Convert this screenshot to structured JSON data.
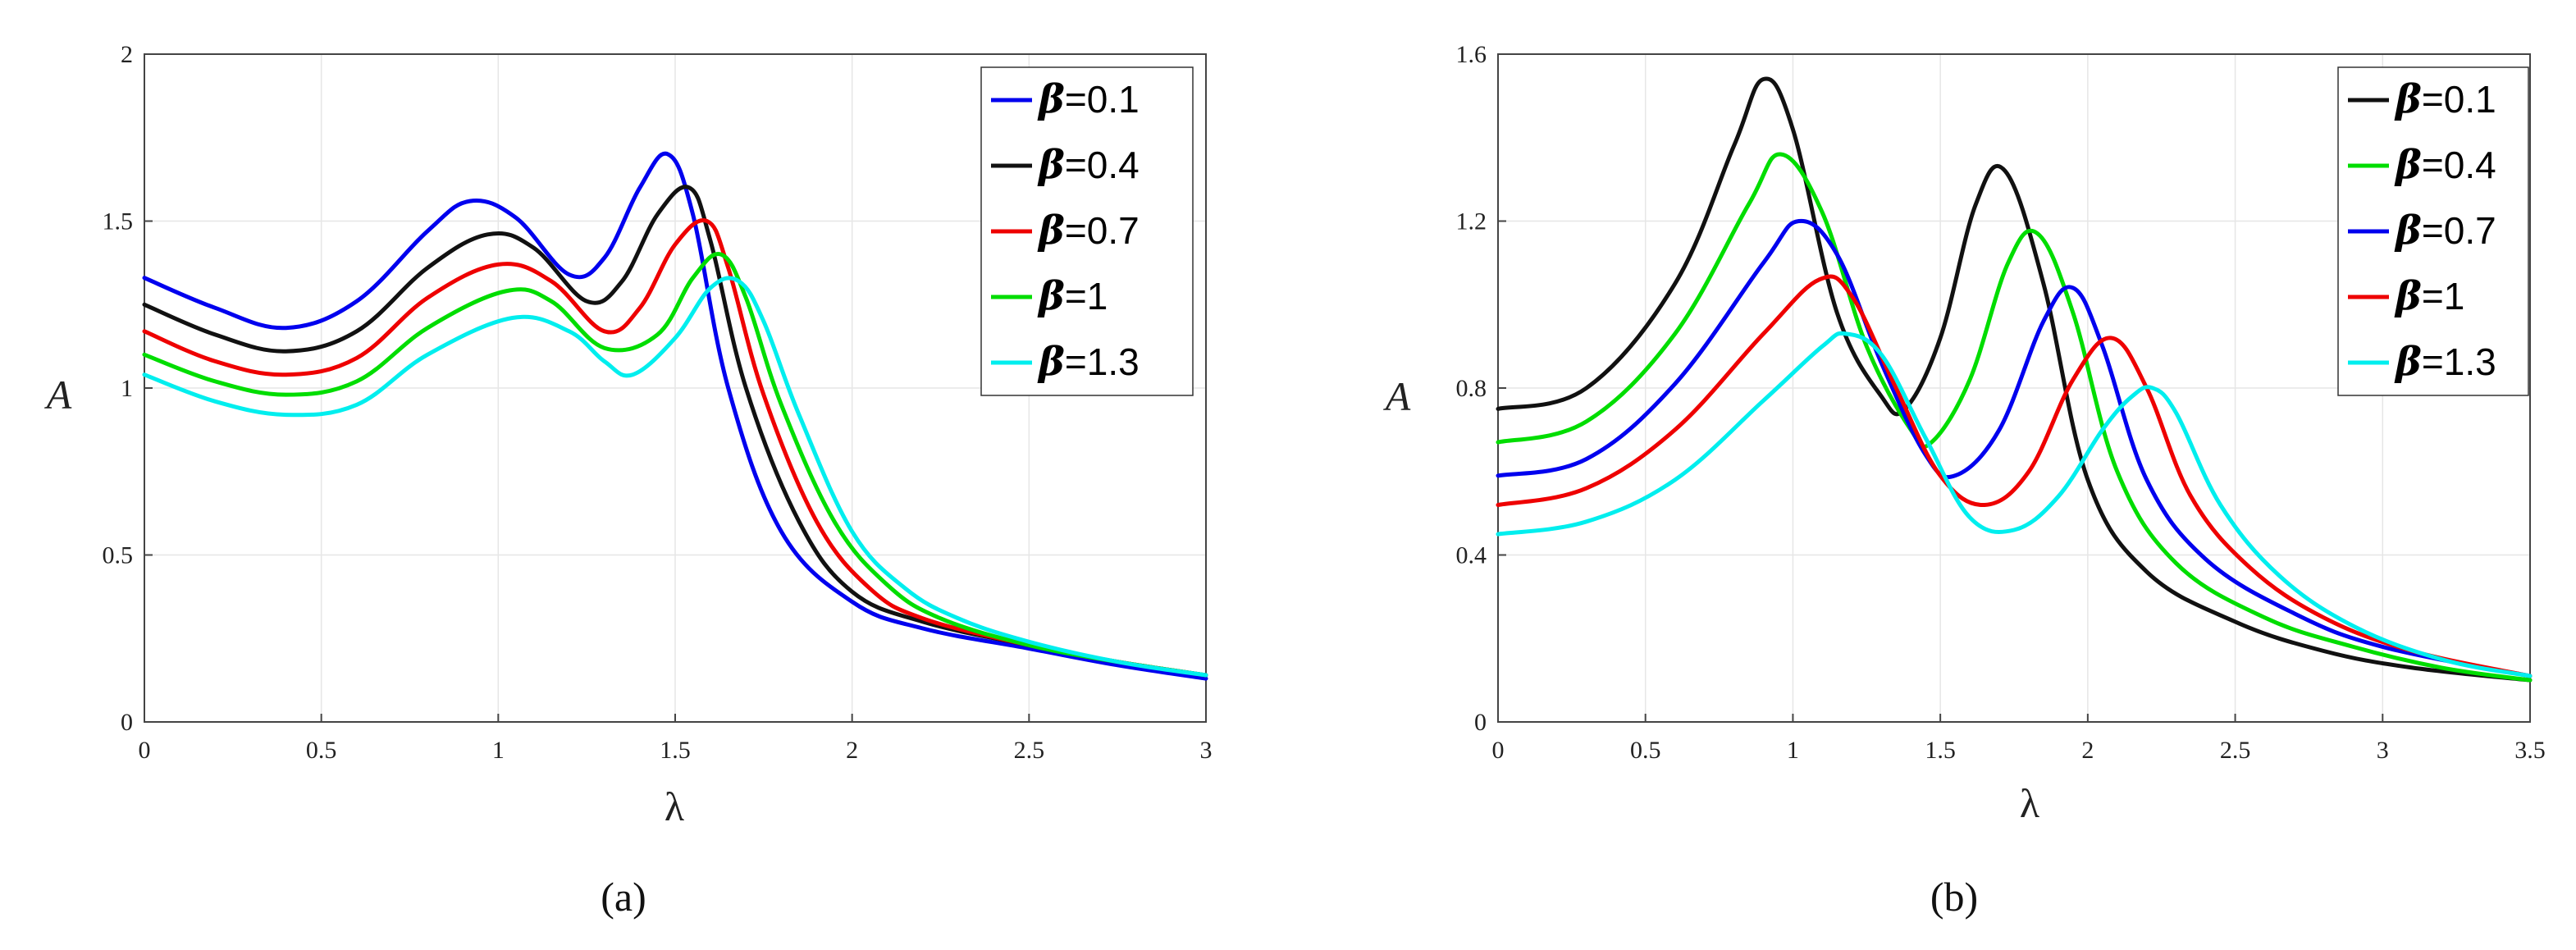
{
  "chart_data": [
    {
      "type": "line",
      "caption": "(a)",
      "xlabel": "λ",
      "ylabel": "A",
      "xlim": [
        0,
        3
      ],
      "ylim": [
        0,
        2
      ],
      "xticks": [
        "0",
        "0.5",
        "1",
        "1.5",
        "2",
        "2.5",
        "3"
      ],
      "yticks": [
        "0",
        "0.5",
        "1",
        "1.5",
        "2"
      ],
      "grid": true,
      "legend_position": "top-right",
      "series": [
        {
          "name": "β=0.1",
          "legend_symbol": "β",
          "legend_value": "=0.1",
          "color": "#0000ee",
          "x": [
            0,
            0.2,
            0.4,
            0.6,
            0.8,
            0.92,
            1.05,
            1.2,
            1.3,
            1.4,
            1.48,
            1.55,
            1.65,
            1.8,
            2.0,
            2.2,
            2.5,
            2.75,
            3.0
          ],
          "y": [
            1.33,
            1.24,
            1.18,
            1.26,
            1.47,
            1.56,
            1.51,
            1.34,
            1.39,
            1.6,
            1.7,
            1.52,
            1.0,
            0.57,
            0.36,
            0.28,
            0.22,
            0.17,
            0.13
          ]
        },
        {
          "name": "β=0.4",
          "legend_symbol": "β",
          "legend_value": "=0.4",
          "color": "#111111",
          "x": [
            0,
            0.2,
            0.4,
            0.6,
            0.8,
            0.97,
            1.1,
            1.25,
            1.35,
            1.45,
            1.54,
            1.6,
            1.7,
            1.85,
            2.0,
            2.2,
            2.5,
            2.75,
            3.0
          ],
          "y": [
            1.25,
            1.16,
            1.11,
            1.17,
            1.36,
            1.46,
            1.42,
            1.26,
            1.32,
            1.52,
            1.6,
            1.44,
            1.0,
            0.6,
            0.39,
            0.3,
            0.23,
            0.18,
            0.14
          ]
        },
        {
          "name": "β=0.7",
          "legend_symbol": "β",
          "legend_value": "=0.7",
          "color": "#ee0000",
          "x": [
            0,
            0.2,
            0.4,
            0.6,
            0.8,
            1.0,
            1.15,
            1.3,
            1.4,
            1.5,
            1.59,
            1.65,
            1.75,
            1.9,
            2.05,
            2.2,
            2.5,
            2.75,
            3.0
          ],
          "y": [
            1.17,
            1.08,
            1.04,
            1.09,
            1.27,
            1.37,
            1.32,
            1.17,
            1.24,
            1.43,
            1.5,
            1.36,
            0.98,
            0.6,
            0.4,
            0.31,
            0.23,
            0.18,
            0.14
          ]
        },
        {
          "name": "β=1",
          "legend_symbol": "β",
          "legend_value": "=1",
          "color": "#00dd00",
          "x": [
            0,
            0.2,
            0.4,
            0.6,
            0.8,
            1.02,
            1.15,
            1.3,
            1.45,
            1.55,
            1.63,
            1.7,
            1.8,
            1.95,
            2.1,
            2.25,
            2.5,
            2.75,
            3.0
          ],
          "y": [
            1.1,
            1.02,
            0.98,
            1.02,
            1.18,
            1.29,
            1.26,
            1.12,
            1.16,
            1.33,
            1.4,
            1.27,
            0.95,
            0.6,
            0.41,
            0.31,
            0.23,
            0.18,
            0.14
          ]
        },
        {
          "name": "β=1.3",
          "legend_symbol": "β",
          "legend_value": "=1.3",
          "color": "#00eeee",
          "x": [
            0,
            0.2,
            0.4,
            0.6,
            0.8,
            1.04,
            1.2,
            1.3,
            1.38,
            1.5,
            1.6,
            1.68,
            1.75,
            1.85,
            2.0,
            2.15,
            2.3,
            2.5,
            2.75,
            3.0
          ],
          "y": [
            1.04,
            0.96,
            0.92,
            0.95,
            1.1,
            1.21,
            1.17,
            1.08,
            1.04,
            1.15,
            1.3,
            1.32,
            1.2,
            0.92,
            0.57,
            0.4,
            0.31,
            0.24,
            0.18,
            0.14
          ]
        }
      ]
    },
    {
      "type": "line",
      "caption": "(b)",
      "xlabel": "λ",
      "ylabel": "A",
      "xlim": [
        0,
        3.5
      ],
      "ylim": [
        0,
        1.6
      ],
      "xticks": [
        "0",
        "0.5",
        "1",
        "1.5",
        "2",
        "2.5",
        "3",
        "3.5"
      ],
      "yticks": [
        "0",
        "0.4",
        "0.8",
        "1.2",
        "1.6"
      ],
      "grid": true,
      "legend_position": "top-right",
      "series": [
        {
          "name": "β=0.1",
          "legend_symbol": "β",
          "legend_value": "=0.1",
          "color": "#111111",
          "x": [
            0,
            0.3,
            0.6,
            0.8,
            0.9,
            1.0,
            1.15,
            1.3,
            1.38,
            1.5,
            1.62,
            1.72,
            1.85,
            2.0,
            2.2,
            2.5,
            2.8,
            3.1,
            3.5
          ],
          "y": [
            0.75,
            0.8,
            1.05,
            1.38,
            1.54,
            1.42,
            0.98,
            0.78,
            0.75,
            0.92,
            1.24,
            1.32,
            1.05,
            0.58,
            0.36,
            0.24,
            0.17,
            0.13,
            0.1
          ]
        },
        {
          "name": "β=0.4",
          "legend_symbol": "β",
          "legend_value": "=0.4",
          "color": "#00dd00",
          "x": [
            0,
            0.3,
            0.6,
            0.85,
            0.96,
            1.1,
            1.25,
            1.4,
            1.47,
            1.6,
            1.73,
            1.83,
            1.95,
            2.1,
            2.3,
            2.6,
            2.9,
            3.2,
            3.5
          ],
          "y": [
            0.67,
            0.72,
            0.93,
            1.24,
            1.36,
            1.22,
            0.9,
            0.7,
            0.67,
            0.82,
            1.1,
            1.17,
            0.98,
            0.6,
            0.38,
            0.25,
            0.18,
            0.13,
            0.1
          ]
        },
        {
          "name": "β=0.7",
          "legend_symbol": "β",
          "legend_value": "=0.7",
          "color": "#0000ee",
          "x": [
            0,
            0.3,
            0.6,
            0.9,
            1.02,
            1.15,
            1.3,
            1.45,
            1.55,
            1.7,
            1.85,
            1.95,
            2.05,
            2.2,
            2.4,
            2.7,
            3.0,
            3.5
          ],
          "y": [
            0.59,
            0.63,
            0.81,
            1.1,
            1.2,
            1.12,
            0.86,
            0.64,
            0.59,
            0.7,
            0.96,
            1.04,
            0.9,
            0.58,
            0.39,
            0.26,
            0.18,
            0.11
          ]
        },
        {
          "name": "β=1",
          "legend_symbol": "β",
          "legend_value": "=1",
          "color": "#ee0000",
          "x": [
            0,
            0.3,
            0.6,
            0.9,
            1.09,
            1.2,
            1.35,
            1.5,
            1.65,
            1.8,
            1.95,
            2.08,
            2.2,
            2.35,
            2.55,
            2.8,
            3.1,
            3.5
          ],
          "y": [
            0.52,
            0.56,
            0.7,
            0.93,
            1.06,
            1.02,
            0.8,
            0.59,
            0.52,
            0.6,
            0.82,
            0.92,
            0.8,
            0.54,
            0.37,
            0.25,
            0.17,
            0.11
          ]
        },
        {
          "name": "β=1.3",
          "legend_symbol": "β",
          "legend_value": "=1.3",
          "color": "#00eeee",
          "x": [
            0,
            0.3,
            0.6,
            0.9,
            1.1,
            1.18,
            1.3,
            1.45,
            1.6,
            1.75,
            1.9,
            2.05,
            2.15,
            2.22,
            2.3,
            2.45,
            2.65,
            2.9,
            3.2,
            3.5
          ],
          "y": [
            0.45,
            0.48,
            0.58,
            0.77,
            0.9,
            0.93,
            0.88,
            0.68,
            0.49,
            0.46,
            0.54,
            0.7,
            0.78,
            0.8,
            0.74,
            0.52,
            0.35,
            0.23,
            0.15,
            0.11
          ]
        }
      ]
    }
  ]
}
